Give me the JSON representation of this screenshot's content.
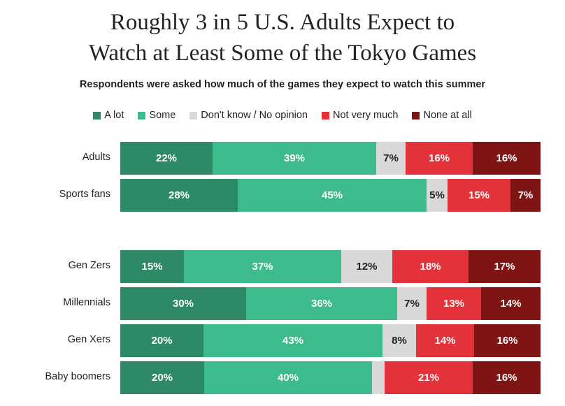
{
  "chart_data": {
    "type": "bar",
    "orientation": "horizontal",
    "stacked": true,
    "percent": true,
    "title": [
      "Roughly 3 in 5 U.S. Adults Expect to",
      "Watch at Least Some of the Tokyo Games"
    ],
    "subtitle": "Respondents were asked how much of the games they expect to watch this summer",
    "legend_position": "top",
    "series": [
      {
        "name": "A lot",
        "color": "#2e8a66",
        "text_color": "light"
      },
      {
        "name": "Some",
        "color": "#3dbb8c",
        "text_color": "light"
      },
      {
        "name": "Don't know / No opinion",
        "color": "#d9d9d9",
        "text_color": "dark"
      },
      {
        "name": "Not very much",
        "color": "#e4323a",
        "text_color": "light"
      },
      {
        "name": "None at all",
        "color": "#7e1414",
        "text_color": "light"
      }
    ],
    "groups": [
      {
        "rows": [
          {
            "label": "Adults",
            "values": [
              22,
              39,
              7,
              16,
              16
            ],
            "labels": [
              "22%",
              "39%",
              "7%",
              "16%",
              "16%"
            ]
          },
          {
            "label": "Sports fans",
            "values": [
              28,
              45,
              5,
              15,
              7
            ],
            "labels": [
              "28%",
              "45%",
              "5%",
              "15%",
              "7%"
            ]
          }
        ]
      },
      {
        "rows": [
          {
            "label": "Gen Zers",
            "values": [
              15,
              37,
              12,
              18,
              17
            ],
            "labels": [
              "15%",
              "37%",
              "12%",
              "18%",
              "17%"
            ]
          },
          {
            "label": "Millennials",
            "values": [
              30,
              36,
              7,
              13,
              14
            ],
            "labels": [
              "30%",
              "36%",
              "7%",
              "13%",
              "14%"
            ]
          },
          {
            "label": "Gen Xers",
            "values": [
              20,
              43,
              8,
              14,
              16
            ],
            "labels": [
              "20%",
              "43%",
              "8%",
              "14%",
              "16%"
            ]
          },
          {
            "label": "Baby boomers",
            "values": [
              20,
              40,
              3,
              21,
              16
            ],
            "labels": [
              "20%",
              "40%",
              "",
              "21%",
              "16%"
            ]
          }
        ]
      }
    ]
  }
}
